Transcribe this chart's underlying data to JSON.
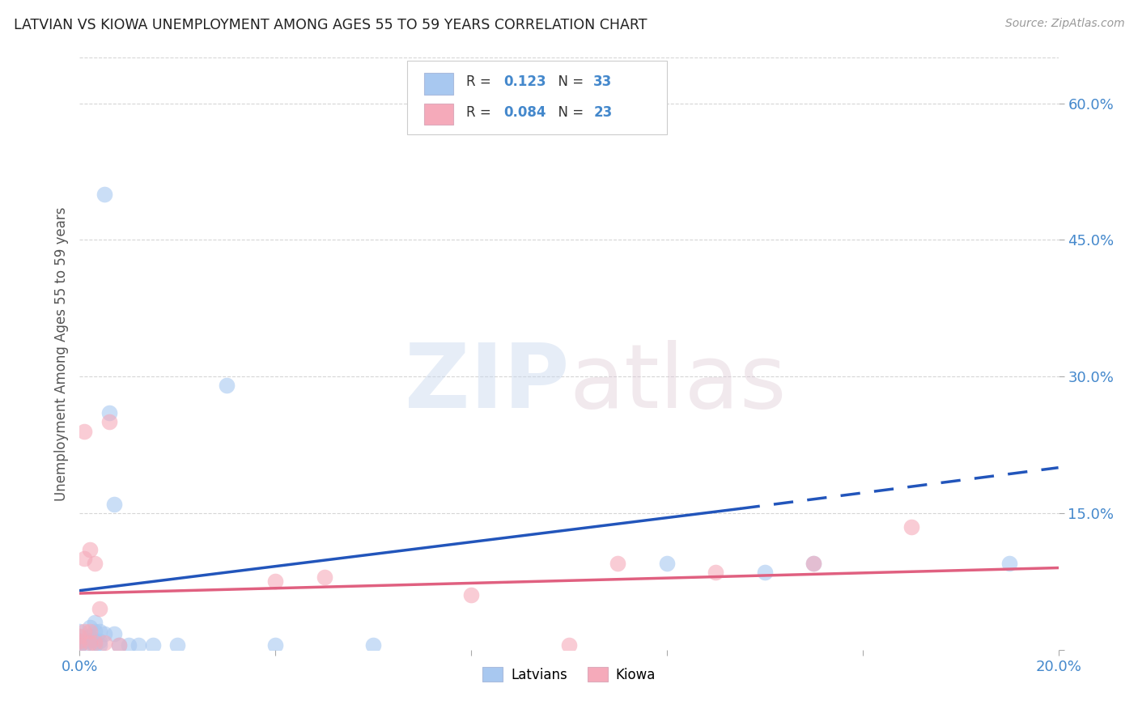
{
  "title": "LATVIAN VS KIOWA UNEMPLOYMENT AMONG AGES 55 TO 59 YEARS CORRELATION CHART",
  "source": "Source: ZipAtlas.com",
  "ylabel_label": "Unemployment Among Ages 55 to 59 years",
  "xlim": [
    0.0,
    0.2
  ],
  "ylim": [
    0.0,
    0.65
  ],
  "x_ticks": [
    0.0,
    0.04,
    0.08,
    0.12,
    0.16,
    0.2
  ],
  "y_ticks_right": [
    0.0,
    0.15,
    0.3,
    0.45,
    0.6
  ],
  "latvian_color": "#a8c8f0",
  "kiowa_color": "#f5aaba",
  "latvian_line_color": "#2255bb",
  "kiowa_line_color": "#e06080",
  "latvian_R": 0.123,
  "latvian_N": 33,
  "kiowa_R": 0.084,
  "kiowa_N": 23,
  "background_color": "#ffffff",
  "grid_color": "#cccccc",
  "text_color": "#4488cc",
  "latvians_scatter": [
    [
      0.0,
      0.02
    ],
    [
      0.0,
      0.015
    ],
    [
      0.0,
      0.01
    ],
    [
      0.0,
      0.005
    ],
    [
      0.001,
      0.01
    ],
    [
      0.001,
      0.005
    ],
    [
      0.002,
      0.025
    ],
    [
      0.002,
      0.015
    ],
    [
      0.002,
      0.01
    ],
    [
      0.003,
      0.03
    ],
    [
      0.003,
      0.02
    ],
    [
      0.003,
      0.01
    ],
    [
      0.003,
      0.005
    ],
    [
      0.004,
      0.02
    ],
    [
      0.004,
      0.01
    ],
    [
      0.004,
      0.005
    ],
    [
      0.005,
      0.018
    ],
    [
      0.005,
      0.5
    ],
    [
      0.006,
      0.26
    ],
    [
      0.007,
      0.16
    ],
    [
      0.007,
      0.018
    ],
    [
      0.008,
      0.005
    ],
    [
      0.01,
      0.005
    ],
    [
      0.012,
      0.005
    ],
    [
      0.015,
      0.005
    ],
    [
      0.02,
      0.005
    ],
    [
      0.03,
      0.29
    ],
    [
      0.04,
      0.005
    ],
    [
      0.06,
      0.005
    ],
    [
      0.12,
      0.095
    ],
    [
      0.14,
      0.085
    ],
    [
      0.15,
      0.095
    ],
    [
      0.19,
      0.095
    ]
  ],
  "kiowa_scatter": [
    [
      0.0,
      0.015
    ],
    [
      0.0,
      0.01
    ],
    [
      0.0,
      0.005
    ],
    [
      0.001,
      0.24
    ],
    [
      0.001,
      0.1
    ],
    [
      0.001,
      0.02
    ],
    [
      0.002,
      0.11
    ],
    [
      0.002,
      0.02
    ],
    [
      0.002,
      0.008
    ],
    [
      0.003,
      0.095
    ],
    [
      0.003,
      0.008
    ],
    [
      0.004,
      0.045
    ],
    [
      0.005,
      0.008
    ],
    [
      0.006,
      0.25
    ],
    [
      0.008,
      0.005
    ],
    [
      0.04,
      0.075
    ],
    [
      0.05,
      0.08
    ],
    [
      0.08,
      0.06
    ],
    [
      0.1,
      0.005
    ],
    [
      0.11,
      0.095
    ],
    [
      0.13,
      0.085
    ],
    [
      0.15,
      0.095
    ],
    [
      0.17,
      0.135
    ]
  ],
  "latvian_trendline_solid": [
    [
      0.0,
      0.065
    ],
    [
      0.135,
      0.155
    ]
  ],
  "latvian_trendline_dash": [
    [
      0.135,
      0.155
    ],
    [
      0.2,
      0.2
    ]
  ],
  "kiowa_trendline": [
    [
      0.0,
      0.062
    ],
    [
      0.2,
      0.09
    ]
  ]
}
